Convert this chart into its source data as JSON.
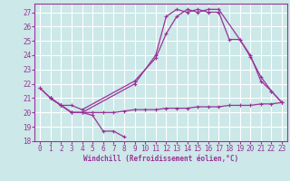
{
  "xlabel": "Windchill (Refroidissement éolien,°C)",
  "xlim": [
    -0.5,
    23.5
  ],
  "ylim": [
    18,
    27.6
  ],
  "yticks": [
    18,
    19,
    20,
    21,
    22,
    23,
    24,
    25,
    26,
    27
  ],
  "xticks": [
    0,
    1,
    2,
    3,
    4,
    5,
    6,
    7,
    8,
    9,
    10,
    11,
    12,
    13,
    14,
    15,
    16,
    17,
    18,
    19,
    20,
    21,
    22,
    23
  ],
  "bg_color": "#cce8e8",
  "line_color": "#993399",
  "grid_color": "#ffffff",
  "line1_x": [
    0,
    1,
    2,
    3,
    4,
    5,
    6,
    7,
    8
  ],
  "line1_y": [
    21.7,
    21.0,
    20.5,
    20.0,
    20.0,
    19.8,
    18.7,
    18.7,
    18.3
  ],
  "line2_x": [
    1,
    2,
    3,
    4,
    5,
    6,
    7,
    8,
    9,
    10,
    11,
    12,
    13,
    14,
    15,
    16,
    17,
    18,
    19,
    20,
    21,
    22,
    23
  ],
  "line2_y": [
    21.0,
    20.5,
    20.0,
    20.0,
    20.0,
    20.0,
    20.0,
    20.1,
    20.2,
    20.2,
    20.2,
    20.3,
    20.3,
    20.3,
    20.4,
    20.4,
    20.4,
    20.5,
    20.5,
    20.5,
    20.6,
    20.6,
    20.7
  ],
  "line3_x": [
    0,
    1,
    2,
    3,
    4,
    9,
    11,
    12,
    13,
    14,
    15,
    16,
    17,
    19,
    20,
    21,
    22,
    23
  ],
  "line3_y": [
    21.7,
    21.0,
    20.5,
    20.5,
    20.2,
    22.2,
    23.8,
    25.5,
    26.7,
    27.2,
    27.0,
    27.2,
    27.2,
    25.1,
    24.0,
    22.2,
    21.5,
    20.7
  ],
  "line4_x": [
    1,
    2,
    3,
    4,
    9,
    11,
    12,
    13,
    14,
    15,
    16,
    17,
    18,
    19,
    20,
    21,
    22,
    23
  ],
  "line4_y": [
    21.0,
    20.5,
    20.0,
    20.0,
    22.0,
    24.0,
    26.7,
    27.2,
    27.0,
    27.2,
    27.0,
    27.0,
    25.1,
    25.1,
    23.9,
    22.5,
    21.5,
    20.7
  ]
}
